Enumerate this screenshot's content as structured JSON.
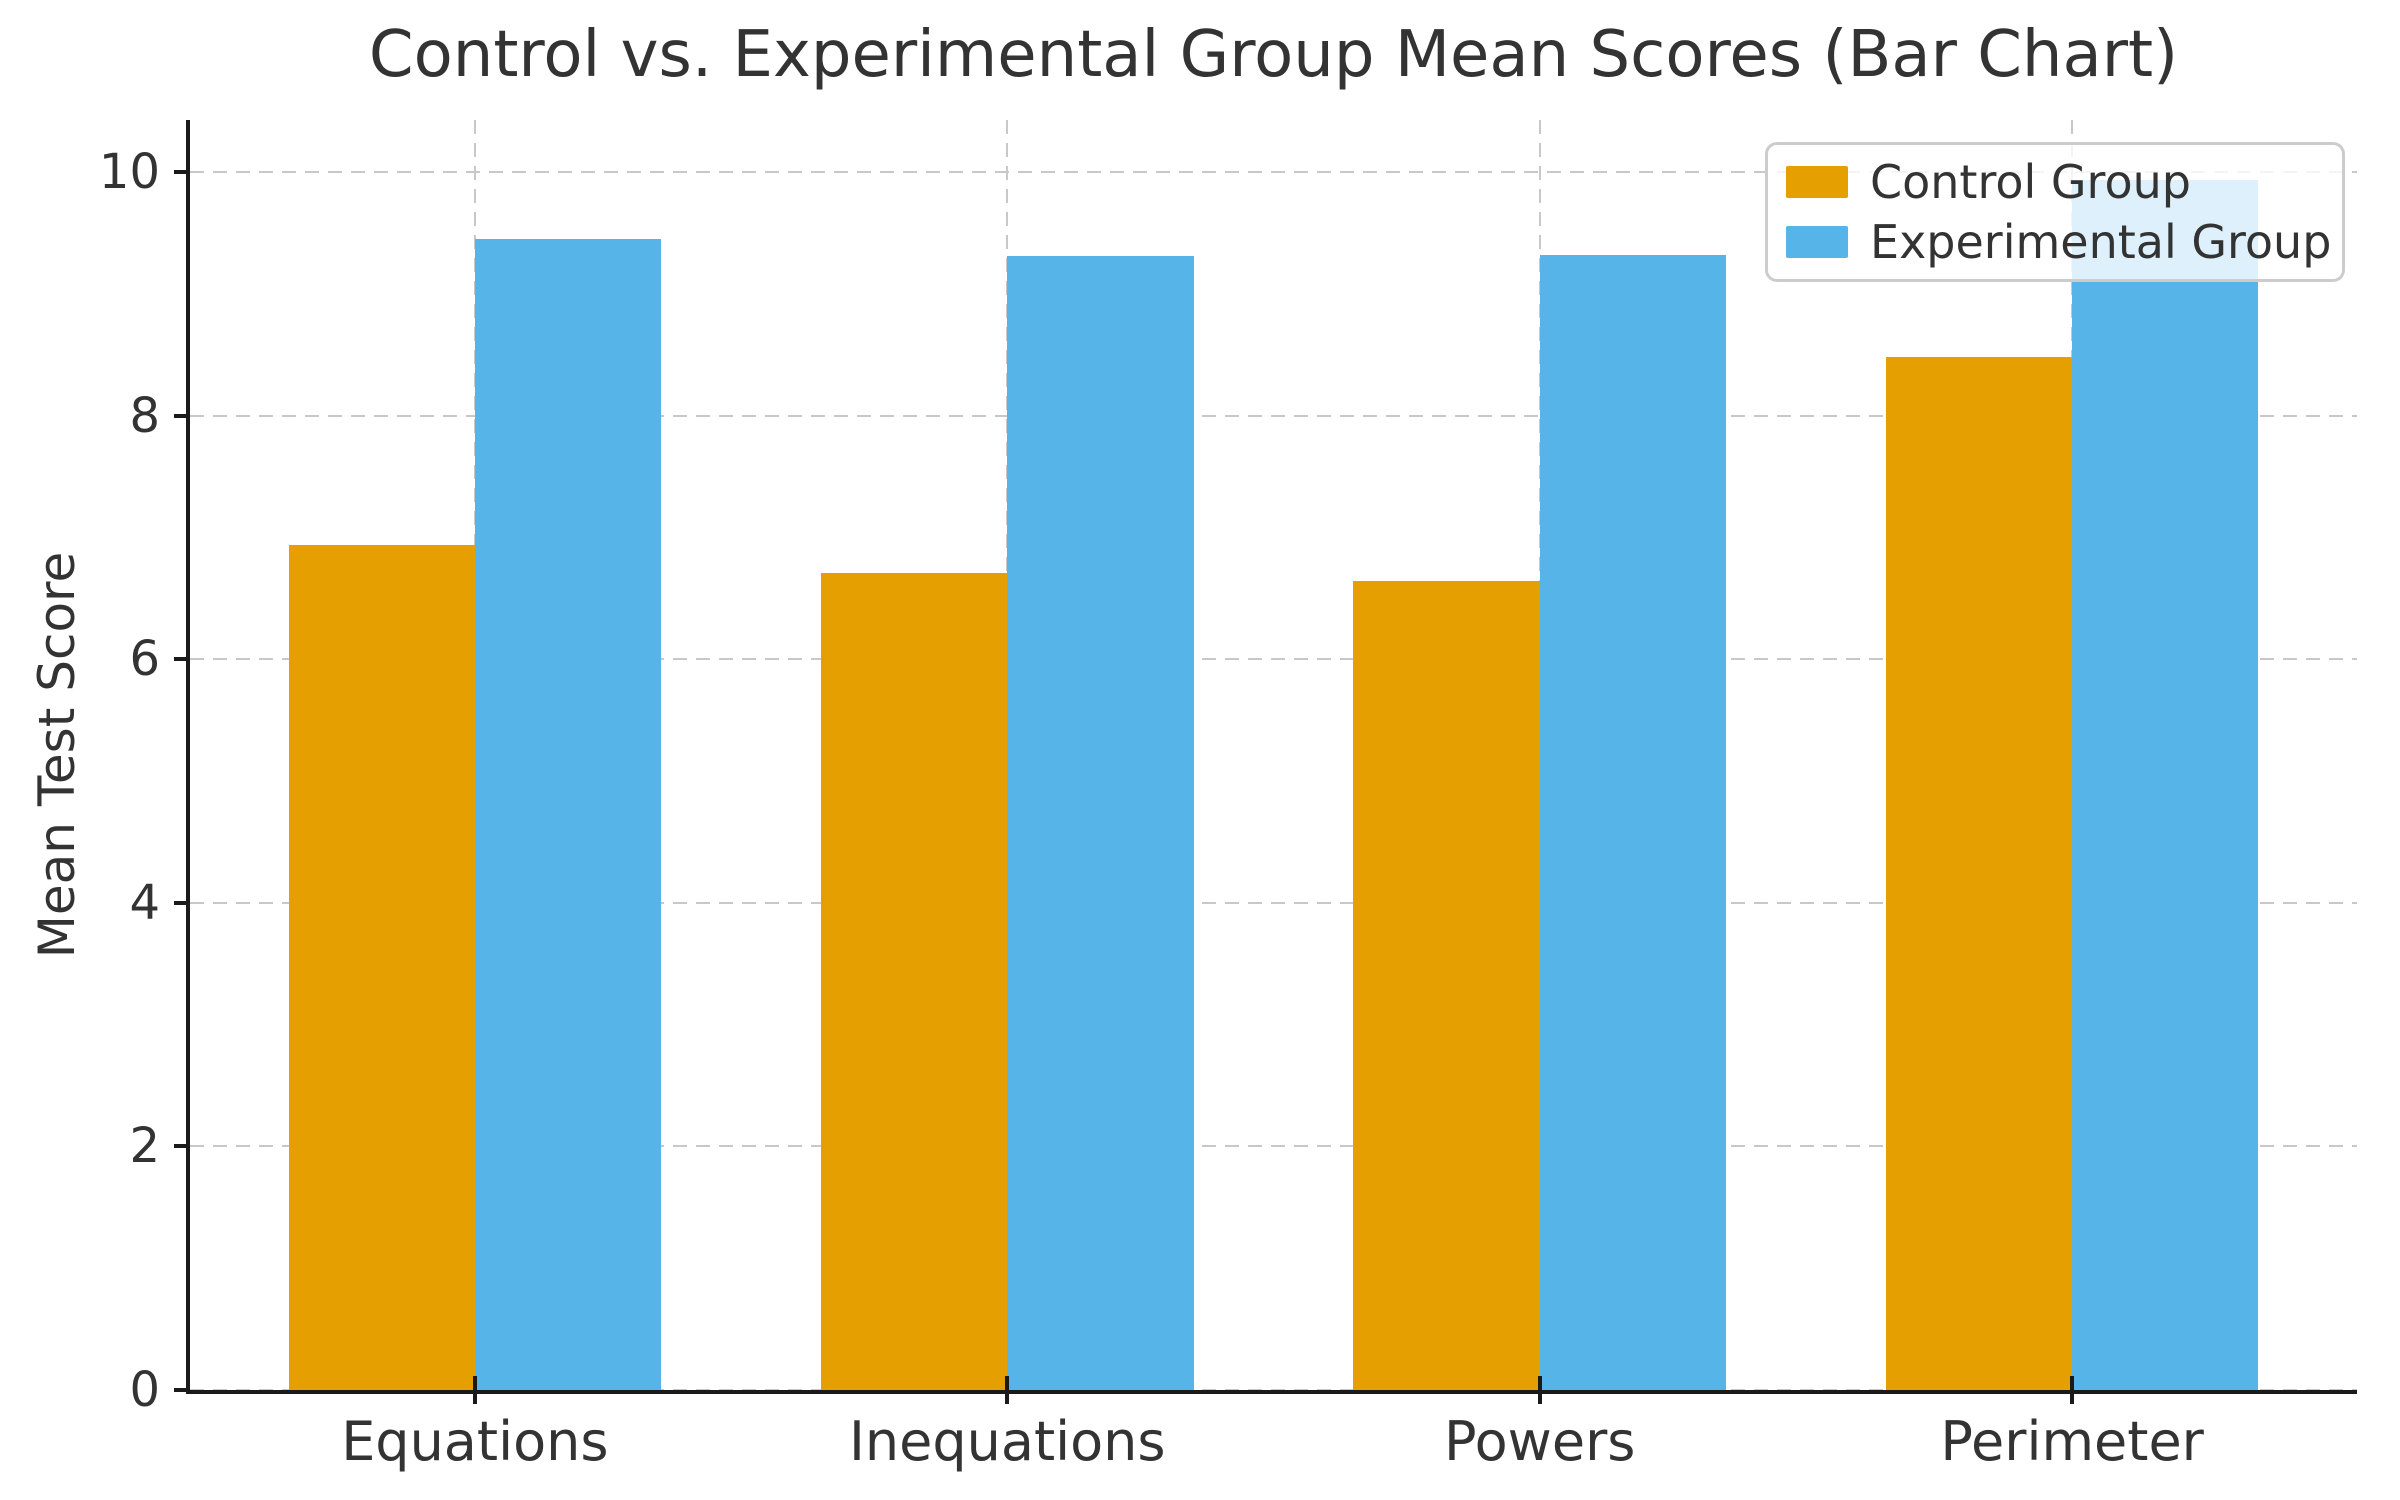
{
  "chart_data": {
    "type": "bar",
    "title": "Control vs. Experimental Group Mean Scores (Bar Chart)",
    "xlabel": "",
    "ylabel": "Mean Test Score",
    "categories": [
      "Equations",
      "Inequations",
      "Powers",
      "Perimeter"
    ],
    "series": [
      {
        "name": "Control Group",
        "color": "#E69F00",
        "values": [
          6.94,
          6.71,
          6.64,
          8.48
        ]
      },
      {
        "name": "Experimental Group",
        "color": "#56B4E9",
        "values": [
          9.45,
          9.31,
          9.32,
          9.94
        ]
      }
    ],
    "bar_width": 0.35,
    "xlim": [
      -0.535,
      3.535
    ],
    "ylim": [
      0,
      10.43
    ],
    "yticks": [
      0,
      2,
      4,
      6,
      8,
      10
    ],
    "grid": {
      "visible": true,
      "axis": "both",
      "style": "dashed",
      "color": "#c8c8c8"
    },
    "legend": {
      "position": "upper right"
    },
    "axis_color": "#1a1a1a",
    "text_color": "#333333"
  }
}
